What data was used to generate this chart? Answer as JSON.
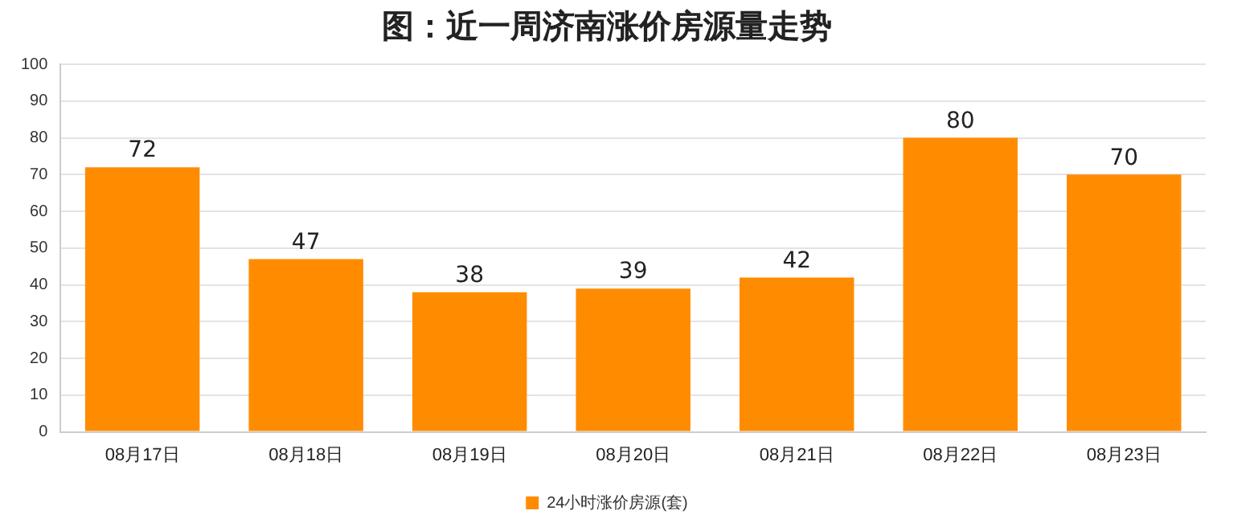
{
  "chart_data": {
    "type": "bar",
    "title": "图：近一周济南涨价房源量走势",
    "categories": [
      "08月17日",
      "08月18日",
      "08月19日",
      "08月20日",
      "08月21日",
      "08月22日",
      "08月23日"
    ],
    "series": [
      {
        "name": "24小时涨价房源(套)",
        "color": "#ff8c00",
        "values": [
          72,
          47,
          38,
          39,
          42,
          80,
          70
        ]
      }
    ],
    "ylim": [
      0,
      100
    ],
    "yticks": [
      0,
      10,
      20,
      30,
      40,
      50,
      60,
      70,
      80,
      90,
      100
    ],
    "grid": "y",
    "legend": "bottom",
    "data_labels": true
  }
}
